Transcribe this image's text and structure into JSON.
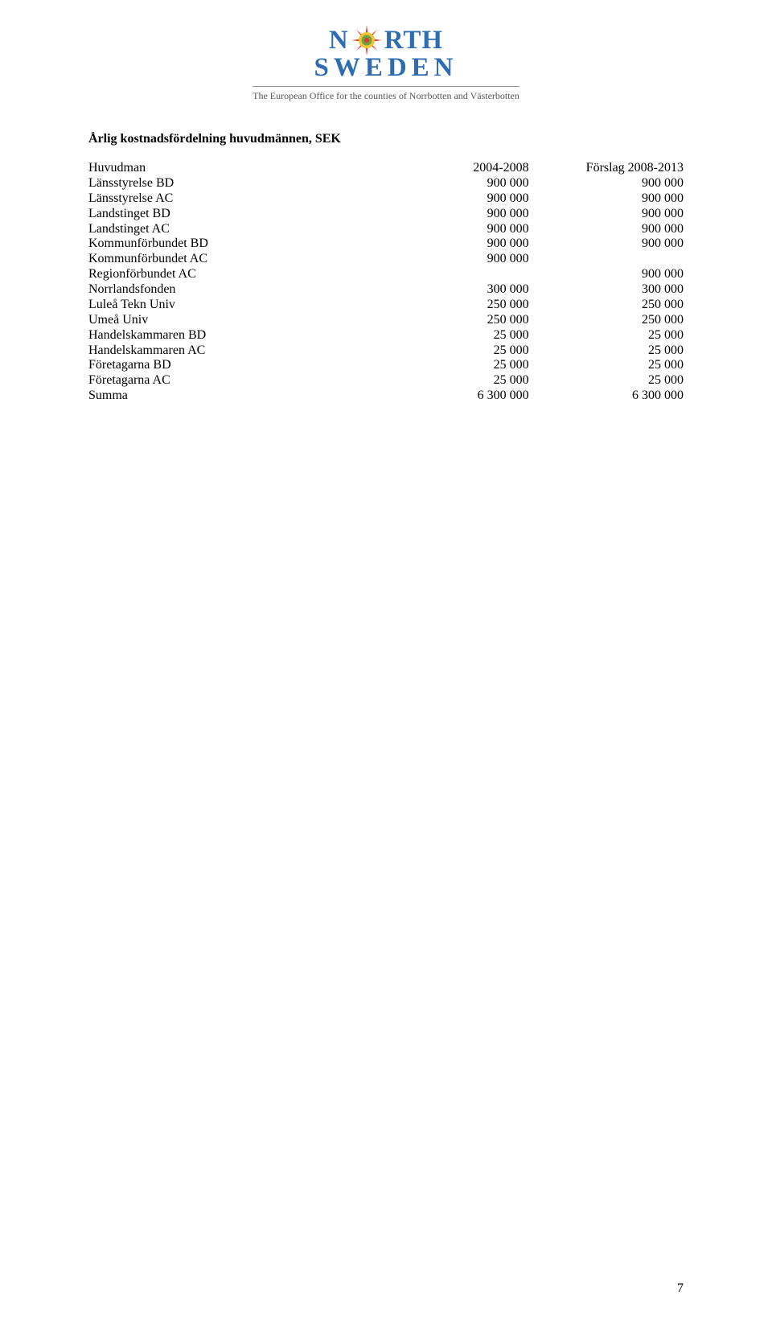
{
  "logo": {
    "left_letters": "N",
    "right_letters": "RTH",
    "bottom_word": "SWEDEN",
    "tagline": "The European Office for the counties of Norrbotten and Västerbotten",
    "colors": {
      "text": "#2f6db2",
      "sun_outer": "#e23b2e",
      "sun_mid": "#f4c531",
      "sun_inner": "#6aa442",
      "sun_center": "#e23b2e",
      "tagline": "#555555",
      "rule": "#999999"
    }
  },
  "heading": "Årlig kostnadsfördelning huvudmännen, SEK",
  "table": {
    "columns": [
      "Huvudman",
      "2004-2008",
      "Förslag 2008-2013"
    ],
    "rows": [
      {
        "label": "Länsstyrelse BD",
        "v1": "900 000",
        "v2": "900 000"
      },
      {
        "label": "Länsstyrelse AC",
        "v1": "900 000",
        "v2": "900 000"
      },
      {
        "label": "Landstinget BD",
        "v1": "900 000",
        "v2": "900 000"
      },
      {
        "label": "Landstinget AC",
        "v1": "900 000",
        "v2": "900 000"
      },
      {
        "label": "Kommunförbundet BD",
        "v1": "900 000",
        "v2": "900 000"
      },
      {
        "label": "Kommunförbundet AC",
        "v1": "900 000",
        "v2": ""
      },
      {
        "label": "Regionförbundet AC",
        "v1": "",
        "v2": "900 000"
      },
      {
        "label": "Norrlandsfonden",
        "v1": "300 000",
        "v2": "300 000"
      },
      {
        "label": "Luleå Tekn Univ",
        "v1": "250 000",
        "v2": "250 000"
      },
      {
        "label": "Umeå Univ",
        "v1": "250 000",
        "v2": "250 000"
      },
      {
        "label": "Handelskammaren BD",
        "v1": "25 000",
        "v2": "25 000"
      },
      {
        "label": "Handelskammaren AC",
        "v1": "25 000",
        "v2": "25 000"
      },
      {
        "label": "Företagarna BD",
        "v1": "25 000",
        "v2": "25 000"
      },
      {
        "label": "Företagarna AC",
        "v1": "25 000",
        "v2": "25 000"
      }
    ],
    "summary": {
      "label": "Summa",
      "v1": "6 300 000",
      "v2": "6 300 000"
    }
  },
  "page_number": "7",
  "style": {
    "font_family": "Times New Roman",
    "body_fontsize_pt": 12,
    "heading_fontsize_pt": 12,
    "text_color": "#000000",
    "background": "#ffffff"
  }
}
